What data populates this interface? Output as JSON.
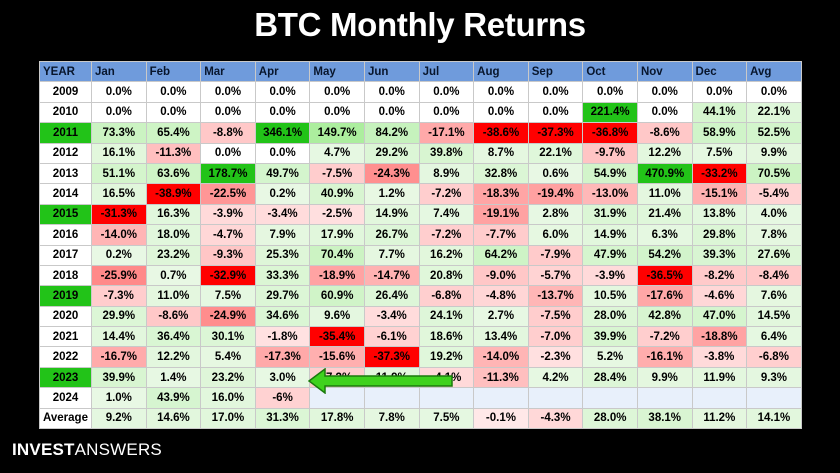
{
  "title": "BTC Monthly Returns",
  "logo": {
    "part1": "INVEST",
    "part2": "ANSWERS"
  },
  "colors": {
    "header_bg": "#6f9bdc",
    "year_highlight": "#22c318",
    "strong_green": "#22c318",
    "strong_red": "#ff0000",
    "arrow": "#3fd21e"
  },
  "chart_data": {
    "type": "table",
    "title": "BTC Monthly Returns",
    "columns": [
      "YEAR",
      "Jan",
      "Feb",
      "Mar",
      "Apr",
      "May",
      "Jun",
      "Jul",
      "Aug",
      "Sep",
      "Oct",
      "Nov",
      "Dec",
      "Avg"
    ],
    "rows": [
      {
        "year": "2009",
        "highlight": false,
        "values": [
          "0.0%",
          "0.0%",
          "0.0%",
          "0.0%",
          "0.0%",
          "0.0%",
          "0.0%",
          "0.0%",
          "0.0%",
          "0.0%",
          "0.0%",
          "0.0%",
          "0.0%"
        ]
      },
      {
        "year": "2010",
        "highlight": false,
        "values": [
          "0.0%",
          "0.0%",
          "0.0%",
          "0.0%",
          "0.0%",
          "0.0%",
          "0.0%",
          "0.0%",
          "0.0%",
          "221.4%",
          "0.0%",
          "44.1%",
          "22.1%"
        ]
      },
      {
        "year": "2011",
        "highlight": true,
        "values": [
          "73.3%",
          "65.4%",
          "-8.8%",
          "346.1%",
          "149.7%",
          "84.2%",
          "-17.1%",
          "-38.6%",
          "-37.3%",
          "-36.8%",
          "-8.6%",
          "58.9%",
          "52.5%"
        ]
      },
      {
        "year": "2012",
        "highlight": false,
        "values": [
          "16.1%",
          "-11.3%",
          "0.0%",
          "0.0%",
          "4.7%",
          "29.2%",
          "39.8%",
          "8.7%",
          "22.1%",
          "-9.7%",
          "12.2%",
          "7.5%",
          "9.9%"
        ]
      },
      {
        "year": "2013",
        "highlight": false,
        "values": [
          "51.1%",
          "63.6%",
          "178.7%",
          "49.7%",
          "-7.5%",
          "-24.3%",
          "8.9%",
          "32.8%",
          "0.6%",
          "54.9%",
          "470.9%",
          "-33.2%",
          "70.5%"
        ]
      },
      {
        "year": "2014",
        "highlight": false,
        "values": [
          "16.5%",
          "-38.9%",
          "-22.5%",
          "0.2%",
          "40.9%",
          "1.2%",
          "-7.2%",
          "-18.3%",
          "-19.4%",
          "-13.0%",
          "11.0%",
          "-15.1%",
          "-5.4%"
        ]
      },
      {
        "year": "2015",
        "highlight": true,
        "values": [
          "-31.3%",
          "16.3%",
          "-3.9%",
          "-3.4%",
          "-2.5%",
          "14.9%",
          "7.4%",
          "-19.1%",
          "2.8%",
          "31.9%",
          "21.4%",
          "13.8%",
          "4.0%"
        ]
      },
      {
        "year": "2016",
        "highlight": false,
        "values": [
          "-14.0%",
          "18.0%",
          "-4.7%",
          "7.9%",
          "17.9%",
          "26.7%",
          "-7.2%",
          "-7.7%",
          "6.0%",
          "14.9%",
          "6.3%",
          "29.8%",
          "7.8%"
        ]
      },
      {
        "year": "2017",
        "highlight": false,
        "values": [
          "0.2%",
          "23.2%",
          "-9.3%",
          "25.3%",
          "70.4%",
          "7.7%",
          "16.2%",
          "64.2%",
          "-7.9%",
          "47.9%",
          "54.2%",
          "39.3%",
          "27.6%"
        ]
      },
      {
        "year": "2018",
        "highlight": false,
        "values": [
          "-25.9%",
          "0.7%",
          "-32.9%",
          "33.3%",
          "-18.9%",
          "-14.7%",
          "20.8%",
          "-9.0%",
          "-5.7%",
          "-3.9%",
          "-36.5%",
          "-8.2%",
          "-8.4%"
        ]
      },
      {
        "year": "2019",
        "highlight": true,
        "values": [
          "-7.3%",
          "11.0%",
          "7.5%",
          "29.7%",
          "60.9%",
          "26.4%",
          "-6.8%",
          "-4.8%",
          "-13.7%",
          "10.5%",
          "-17.6%",
          "-4.6%",
          "7.6%"
        ]
      },
      {
        "year": "2020",
        "highlight": false,
        "values": [
          "29.9%",
          "-8.6%",
          "-24.9%",
          "34.6%",
          "9.6%",
          "-3.4%",
          "24.1%",
          "2.7%",
          "-7.5%",
          "28.0%",
          "42.8%",
          "47.0%",
          "14.5%"
        ]
      },
      {
        "year": "2021",
        "highlight": false,
        "values": [
          "14.4%",
          "36.4%",
          "30.1%",
          "-1.8%",
          "-35.4%",
          "-6.1%",
          "18.6%",
          "13.4%",
          "-7.0%",
          "39.9%",
          "-7.2%",
          "-18.8%",
          "6.4%"
        ]
      },
      {
        "year": "2022",
        "highlight": false,
        "values": [
          "-16.7%",
          "12.2%",
          "5.4%",
          "-17.3%",
          "-15.6%",
          "-37.3%",
          "19.2%",
          "-14.0%",
          "-2.3%",
          "5.2%",
          "-16.1%",
          "-3.8%",
          "-6.8%"
        ]
      },
      {
        "year": "2023",
        "highlight": true,
        "values": [
          "39.9%",
          "1.4%",
          "23.2%",
          "3.0%",
          "-7.2%",
          "11.9%",
          "-4.1%",
          "-11.3%",
          "4.2%",
          "28.4%",
          "9.9%",
          "11.9%",
          "9.3%"
        ]
      },
      {
        "year": "2024",
        "highlight": false,
        "values": [
          "1.0%",
          "43.9%",
          "16.0%",
          "-6%",
          "",
          "",
          "",
          "",
          "",
          "",
          "",
          "",
          ""
        ]
      },
      {
        "year": "Average",
        "highlight": false,
        "values": [
          "9.2%",
          "14.6%",
          "17.0%",
          "31.3%",
          "17.8%",
          "7.8%",
          "7.5%",
          "-0.1%",
          "-4.3%",
          "28.0%",
          "38.1%",
          "11.2%",
          "14.1%"
        ]
      }
    ]
  }
}
